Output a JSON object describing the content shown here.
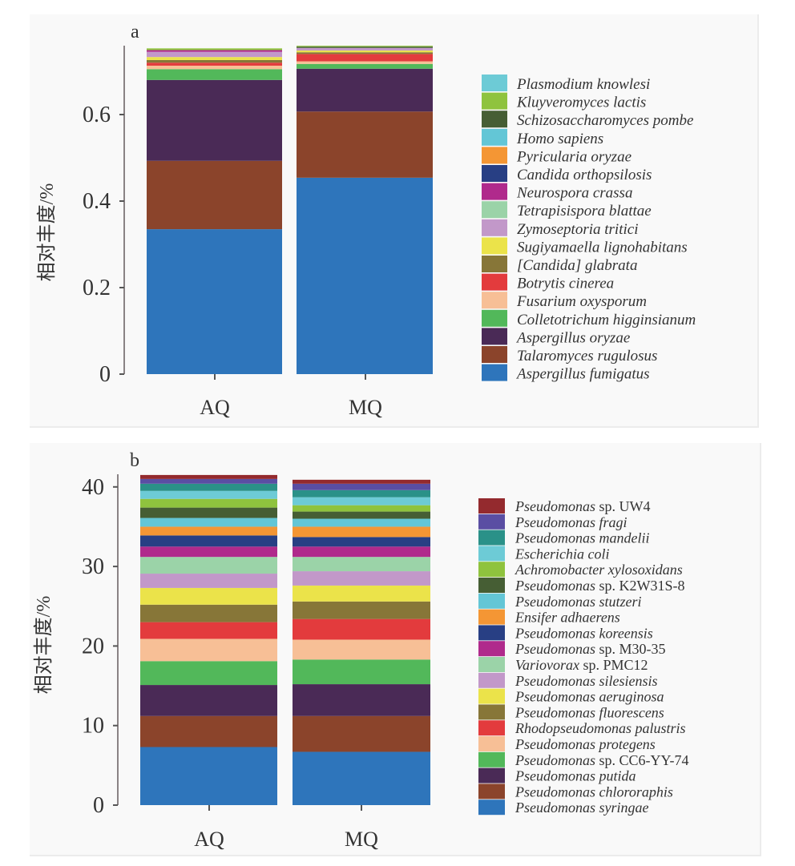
{
  "chart_data": [
    {
      "type": "bar",
      "stacked": true,
      "panel_label": "a",
      "title": "",
      "xlabel": "",
      "ylabel": "相对丰度/%",
      "ylim": [
        0,
        0.76
      ],
      "yticks": [
        0,
        0.2,
        0.4,
        0.6
      ],
      "ytick_labels": [
        "0",
        "0.2",
        "0.4",
        "0.6"
      ],
      "categories": [
        "AQ",
        "MQ"
      ],
      "legend_position": "right",
      "series": [
        {
          "name": "Aspergillus fumigatus",
          "color": "#2e75bb",
          "values": [
            0.335,
            0.454
          ]
        },
        {
          "name": "Talaromyces rugulosus",
          "color": "#8b442b",
          "values": [
            0.158,
            0.153
          ]
        },
        {
          "name": "Aspergillus oryzae",
          "color": "#4a2a56",
          "values": [
            0.187,
            0.099
          ]
        },
        {
          "name": "Colletotrichum higginsianum",
          "color": "#52b85a",
          "values": [
            0.025,
            0.011
          ]
        },
        {
          "name": "Fusarium oxysporum",
          "color": "#f7bf96",
          "values": [
            0.008,
            0.006
          ]
        },
        {
          "name": "Botrytis cinerea",
          "color": "#e33b3d",
          "values": [
            0.007,
            0.017
          ]
        },
        {
          "name": "[Candida] glabrata",
          "color": "#877638",
          "values": [
            0.006,
            0.004
          ]
        },
        {
          "name": "Sugiyamaella lignohabitans",
          "color": "#ebe34a",
          "values": [
            0.007,
            0.004
          ]
        },
        {
          "name": "Zymoseptoria tritici",
          "color": "#c298c9",
          "values": [
            0.012,
            0.006
          ]
        },
        {
          "name": "Tetrapisispora blattae",
          "color": "#9bd3a8",
          "values": [
            0.0,
            0.0
          ]
        },
        {
          "name": "Neurospora crassa",
          "color": "#b02a8c",
          "values": [
            0.004,
            0.0
          ]
        },
        {
          "name": "Candida orthopsilosis",
          "color": "#283f84",
          "values": [
            0.0,
            0.0
          ]
        },
        {
          "name": "Pyricularia oryzae",
          "color": "#f49634",
          "values": [
            0.0,
            0.0
          ]
        },
        {
          "name": "Homo sapiens",
          "color": "#63c6d6",
          "values": [
            0.0,
            0.0
          ]
        },
        {
          "name": "Schizosaccharomyces pombe",
          "color": "#465e34",
          "values": [
            0.0,
            0.003
          ]
        },
        {
          "name": "Kluyveromyces lactis",
          "color": "#8fc33e",
          "values": [
            0.004,
            0.002
          ]
        },
        {
          "name": "Plasmodium knowlesi",
          "color": "#6dcbd6",
          "values": [
            0.0,
            0.0
          ]
        }
      ]
    },
    {
      "type": "bar",
      "stacked": true,
      "panel_label": "b",
      "title": "",
      "xlabel": "",
      "ylabel": "相对丰度/%",
      "ylim": [
        0,
        42
      ],
      "yticks": [
        0,
        10,
        20,
        30,
        40
      ],
      "ytick_labels": [
        "0",
        "10",
        "20",
        "30",
        "40"
      ],
      "categories": [
        "AQ",
        "MQ"
      ],
      "legend_position": "right",
      "series": [
        {
          "name": "Pseudomonas syringae",
          "italic": "Pseudomonas syringae",
          "suffix": "",
          "color": "#2e75bb",
          "values": [
            7.3,
            6.7
          ]
        },
        {
          "name": "Pseudomonas chlororaphis",
          "italic": "Pseudomonas chlororaphis",
          "suffix": "",
          "color": "#8b442b",
          "values": [
            3.9,
            4.5
          ]
        },
        {
          "name": "Pseudomonas putida",
          "italic": "Pseudomonas putida",
          "suffix": "",
          "color": "#4a2a56",
          "values": [
            3.9,
            4.0
          ]
        },
        {
          "name": "Pseudomonas sp. CC6-YY-74",
          "italic": "Pseudomonas",
          "suffix": " sp. CC6-YY-74",
          "color": "#52b85a",
          "values": [
            3.0,
            3.1
          ]
        },
        {
          "name": "Pseudomonas protegens",
          "italic": "Pseudomonas protegens",
          "suffix": "",
          "color": "#f7bf96",
          "values": [
            2.8,
            2.5
          ]
        },
        {
          "name": "Rhodopseudomonas palustris",
          "italic": "Rhodopseudomonas palustris",
          "suffix": "",
          "color": "#e33b3d",
          "values": [
            2.1,
            2.6
          ]
        },
        {
          "name": "Pseudomonas fluorescens",
          "italic": "Pseudomonas fluorescens",
          "suffix": "",
          "color": "#877638",
          "values": [
            2.2,
            2.2
          ]
        },
        {
          "name": "Pseudomonas aeruginosa",
          "italic": "Pseudomonas aeruginosa",
          "suffix": "",
          "color": "#ebe34a",
          "values": [
            2.1,
            2.0
          ]
        },
        {
          "name": "Pseudomonas silesiensis",
          "italic": "Pseudomonas silesiensis",
          "suffix": "",
          "color": "#c298c9",
          "values": [
            1.8,
            1.8
          ]
        },
        {
          "name": "Variovorax sp. PMC12",
          "italic": "Variovorax",
          "suffix": " sp. PMC12",
          "color": "#9bd3a8",
          "values": [
            2.1,
            1.8
          ]
        },
        {
          "name": "Pseudomonas sp. M30-35",
          "italic": "Pseudomonas",
          "suffix": " sp. M30-35",
          "color": "#b02a8c",
          "values": [
            1.3,
            1.3
          ]
        },
        {
          "name": "Pseudomonas koreensis",
          "italic": "Pseudomonas koreensis",
          "suffix": "",
          "color": "#283f84",
          "values": [
            1.4,
            1.2
          ]
        },
        {
          "name": "Ensifer adhaerens",
          "italic": "Ensifer adhaerens",
          "suffix": "",
          "color": "#f49634",
          "values": [
            1.1,
            1.3
          ]
        },
        {
          "name": "Pseudomonas stutzeri",
          "italic": "Pseudomonas stutzeri",
          "suffix": "",
          "color": "#63c6d6",
          "values": [
            1.1,
            1.0
          ]
        },
        {
          "name": "Pseudomonas sp. K2W31S-8",
          "italic": "Pseudomonas",
          "suffix": " sp. K2W31S-8",
          "color": "#465e34",
          "values": [
            1.3,
            0.9
          ]
        },
        {
          "name": "Achromobacter xylosoxidans",
          "italic": "Achromobacter xylosoxidans",
          "suffix": "",
          "color": "#8fc33e",
          "values": [
            1.1,
            0.8
          ]
        },
        {
          "name": "Escherichia coli",
          "italic": "Escherichia coli",
          "suffix": "",
          "color": "#6dcbd6",
          "values": [
            1.0,
            1.0
          ]
        },
        {
          "name": "Pseudomonas mandelii",
          "italic": "Pseudomonas mandelii",
          "suffix": "",
          "color": "#2a9188",
          "values": [
            0.9,
            0.9
          ]
        },
        {
          "name": "Pseudomonas fragi",
          "italic": "Pseudomonas fragi",
          "suffix": "",
          "color": "#5a4ea3",
          "values": [
            0.6,
            0.8
          ]
        },
        {
          "name": "Pseudomonas sp. UW4",
          "italic": "Pseudomonas",
          "suffix": " sp. UW4",
          "color": "#942a2e",
          "values": [
            0.5,
            0.5
          ]
        }
      ]
    }
  ]
}
